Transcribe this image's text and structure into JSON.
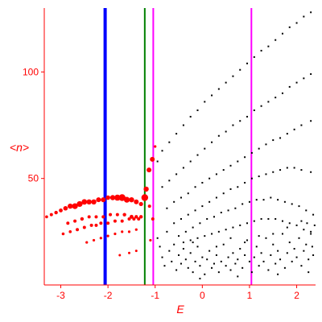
{
  "chart_data": {
    "type": "scatter",
    "title": "",
    "xlabel": "E",
    "ylabel": "<n>",
    "xlim": [
      -3.35,
      2.4
    ],
    "ylim": [
      0,
      130
    ],
    "xticks": [
      {
        "value": -3,
        "label": "-3"
      },
      {
        "value": -2,
        "label": "-2"
      },
      {
        "value": -1,
        "label": "-1"
      },
      {
        "value": 0,
        "label": "0"
      },
      {
        "value": 1,
        "label": "1"
      },
      {
        "value": 2,
        "label": "2"
      }
    ],
    "yticks": [
      {
        "value": 50,
        "label": "50"
      },
      {
        "value": 100,
        "label": "100"
      }
    ],
    "grid": false,
    "legend": "none",
    "vertical_lines": [
      {
        "x": -2.06,
        "color": "#0000ff"
      },
      {
        "x": -1.22,
        "color": "#008000"
      },
      {
        "x": -1.04,
        "color": "#ff00ff"
      },
      {
        "x": 1.04,
        "color": "#ff00ff"
      }
    ],
    "series": [
      {
        "color": "#ff0000",
        "points": [
          [
            -3.3,
            32,
            1.8
          ],
          [
            -3.2,
            33,
            2
          ],
          [
            -3.1,
            34,
            2.2
          ],
          [
            -3.0,
            35,
            2.4
          ],
          [
            -2.9,
            36,
            2.8
          ],
          [
            -2.8,
            37,
            3.2
          ],
          [
            -2.7,
            37,
            3.6
          ],
          [
            -2.6,
            38,
            3.6
          ],
          [
            -2.5,
            39,
            3.4
          ],
          [
            -2.4,
            39,
            3.2
          ],
          [
            -2.3,
            39,
            3.2
          ],
          [
            -2.2,
            40,
            3
          ],
          [
            -2.1,
            40,
            3
          ],
          [
            -2.0,
            41,
            2.8
          ],
          [
            -1.9,
            41,
            3.2
          ],
          [
            -1.8,
            41,
            3.8
          ],
          [
            -1.7,
            41,
            4.2
          ],
          [
            -1.6,
            40,
            3.6
          ],
          [
            -1.5,
            40,
            3.2
          ],
          [
            -1.4,
            39,
            3
          ],
          [
            -1.3,
            38,
            2.6
          ],
          [
            -2.85,
            29,
            2
          ],
          [
            -2.7,
            30,
            2
          ],
          [
            -2.55,
            31,
            2.2
          ],
          [
            -2.4,
            32,
            2
          ],
          [
            -2.25,
            32,
            2
          ],
          [
            -2.1,
            32,
            2
          ],
          [
            -1.95,
            33,
            2
          ],
          [
            -1.8,
            33,
            2
          ],
          [
            -1.65,
            33,
            2.2
          ],
          [
            -1.5,
            32,
            2.4
          ],
          [
            -1.4,
            32,
            2.2
          ],
          [
            -1.3,
            32,
            2.2
          ],
          [
            -2.95,
            24,
            1.8
          ],
          [
            -2.8,
            25,
            1.8
          ],
          [
            -2.65,
            26,
            2
          ],
          [
            -2.5,
            27,
            2
          ],
          [
            -2.35,
            28,
            2
          ],
          [
            -2.25,
            28,
            2
          ],
          [
            -2.15,
            29,
            2
          ],
          [
            -2.0,
            29,
            2
          ],
          [
            -1.85,
            30,
            2
          ],
          [
            -1.7,
            30,
            2
          ],
          [
            -1.55,
            31,
            2
          ],
          [
            -1.45,
            31,
            2
          ],
          [
            -1.35,
            31,
            2
          ],
          [
            -2.45,
            20,
            1.6
          ],
          [
            -2.3,
            21,
            1.6
          ],
          [
            -2.15,
            22,
            1.6
          ],
          [
            -2.0,
            23,
            1.6
          ],
          [
            -1.85,
            24,
            1.6
          ],
          [
            -1.7,
            25,
            1.6
          ],
          [
            -1.55,
            25,
            1.6
          ],
          [
            -1.4,
            26,
            1.6
          ],
          [
            -1.75,
            14,
            1.5
          ],
          [
            -1.55,
            15,
            1.5
          ],
          [
            -1.4,
            16,
            1.5
          ],
          [
            -1.22,
            41,
            4.2
          ],
          [
            -1.19,
            45,
            3.2
          ],
          [
            -1.13,
            54,
            3
          ],
          [
            -1.06,
            59,
            3
          ],
          [
            -1.0,
            65,
            1.6
          ],
          [
            -1.12,
            37,
            2
          ],
          [
            -1.05,
            31,
            2
          ],
          [
            -1.1,
            21,
            1.6
          ]
        ]
      },
      {
        "color": "#000000",
        "points": [
          [
            -0.95,
            58
          ],
          [
            -0.85,
            63
          ],
          [
            -0.7,
            67
          ],
          [
            -0.55,
            71
          ],
          [
            -0.4,
            75
          ],
          [
            -0.25,
            79
          ],
          [
            -0.1,
            82
          ],
          [
            0.05,
            86
          ],
          [
            0.2,
            89
          ],
          [
            0.35,
            92
          ],
          [
            0.5,
            95
          ],
          [
            0.65,
            98
          ],
          [
            0.8,
            101
          ],
          [
            0.95,
            104
          ],
          [
            1.1,
            107
          ],
          [
            1.25,
            110
          ],
          [
            1.4,
            112
          ],
          [
            1.55,
            115
          ],
          [
            1.7,
            118
          ],
          [
            1.85,
            121
          ],
          [
            2.0,
            123
          ],
          [
            2.15,
            126
          ],
          [
            2.3,
            128
          ],
          [
            -0.85,
            46
          ],
          [
            -0.7,
            49
          ],
          [
            -0.55,
            52
          ],
          [
            -0.4,
            55
          ],
          [
            -0.25,
            58
          ],
          [
            -0.1,
            61
          ],
          [
            0.05,
            64
          ],
          [
            0.2,
            67
          ],
          [
            0.35,
            70
          ],
          [
            0.5,
            72
          ],
          [
            0.65,
            75
          ],
          [
            0.8,
            77
          ],
          [
            0.95,
            79
          ],
          [
            1.1,
            82
          ],
          [
            1.25,
            84
          ],
          [
            1.4,
            86
          ],
          [
            1.55,
            88
          ],
          [
            1.7,
            90
          ],
          [
            1.85,
            93
          ],
          [
            2.0,
            95
          ],
          [
            2.15,
            97
          ],
          [
            2.3,
            99
          ],
          [
            -0.75,
            36
          ],
          [
            -0.6,
            39
          ],
          [
            -0.45,
            41
          ],
          [
            -0.3,
            43
          ],
          [
            -0.15,
            46
          ],
          [
            0.0,
            48
          ],
          [
            0.15,
            50
          ],
          [
            0.3,
            52
          ],
          [
            0.45,
            54
          ],
          [
            0.6,
            56
          ],
          [
            0.75,
            58
          ],
          [
            0.9,
            60
          ],
          [
            1.05,
            62
          ],
          [
            1.2,
            64
          ],
          [
            1.35,
            66
          ],
          [
            1.5,
            68
          ],
          [
            1.65,
            69
          ],
          [
            1.8,
            71
          ],
          [
            1.95,
            73
          ],
          [
            2.1,
            75
          ],
          [
            2.3,
            77
          ],
          [
            -0.6,
            29
          ],
          [
            -0.45,
            31
          ],
          [
            -0.3,
            33
          ],
          [
            -0.15,
            35
          ],
          [
            0.0,
            37
          ],
          [
            0.15,
            39
          ],
          [
            0.3,
            41
          ],
          [
            0.45,
            43
          ],
          [
            0.6,
            45
          ],
          [
            0.75,
            46
          ],
          [
            0.9,
            48
          ],
          [
            1.05,
            50
          ],
          [
            1.2,
            51
          ],
          [
            1.35,
            52
          ],
          [
            1.5,
            53
          ],
          [
            1.65,
            54
          ],
          [
            1.8,
            55
          ],
          [
            1.95,
            55
          ],
          [
            2.1,
            54
          ],
          [
            2.3,
            53
          ],
          [
            -0.5,
            23
          ],
          [
            -0.35,
            25
          ],
          [
            -0.2,
            27
          ],
          [
            -0.05,
            29
          ],
          [
            0.1,
            31
          ],
          [
            0.25,
            32
          ],
          [
            0.4,
            34
          ],
          [
            0.55,
            35
          ],
          [
            0.7,
            36
          ],
          [
            0.85,
            38
          ],
          [
            1.0,
            39
          ],
          [
            1.15,
            40
          ],
          [
            1.3,
            40
          ],
          [
            1.45,
            41
          ],
          [
            1.6,
            40
          ],
          [
            1.75,
            39
          ],
          [
            1.9,
            38
          ],
          [
            2.05,
            37
          ],
          [
            2.2,
            35
          ],
          [
            2.35,
            33
          ],
          [
            -0.4,
            20
          ],
          [
            -0.25,
            21
          ],
          [
            -0.1,
            22
          ],
          [
            0.05,
            23
          ],
          [
            0.2,
            24
          ],
          [
            0.35,
            25
          ],
          [
            0.5,
            26
          ],
          [
            0.65,
            27
          ],
          [
            0.8,
            28
          ],
          [
            0.95,
            29
          ],
          [
            1.1,
            30
          ],
          [
            1.25,
            31
          ],
          [
            1.4,
            31
          ],
          [
            1.55,
            31
          ],
          [
            1.7,
            30
          ],
          [
            1.85,
            29
          ],
          [
            2.0,
            28
          ],
          [
            2.15,
            26
          ],
          [
            2.3,
            24
          ],
          [
            -0.95,
            22
          ],
          [
            -0.9,
            18
          ],
          [
            -0.85,
            13
          ],
          [
            -0.8,
            9
          ],
          [
            -0.75,
            25
          ],
          [
            -0.7,
            16
          ],
          [
            -0.65,
            11
          ],
          [
            -0.6,
            19
          ],
          [
            -0.55,
            7
          ],
          [
            -0.5,
            14
          ],
          [
            -0.45,
            10
          ],
          [
            -0.4,
            17
          ],
          [
            -0.35,
            12
          ],
          [
            -0.3,
            8
          ],
          [
            -0.25,
            15
          ],
          [
            -0.2,
            6
          ],
          [
            -0.15,
            11
          ],
          [
            -0.1,
            18
          ],
          [
            -0.05,
            9
          ],
          [
            0.0,
            13
          ],
          [
            0.05,
            5
          ],
          [
            0.1,
            12
          ],
          [
            0.15,
            16
          ],
          [
            0.2,
            8
          ],
          [
            0.25,
            10
          ],
          [
            0.3,
            14
          ],
          [
            0.35,
            6
          ],
          [
            0.4,
            11
          ],
          [
            0.45,
            19
          ],
          [
            0.5,
            9
          ],
          [
            0.55,
            13
          ],
          [
            0.6,
            7
          ],
          [
            0.65,
            15
          ],
          [
            0.7,
            10
          ],
          [
            0.75,
            12
          ],
          [
            0.8,
            17
          ],
          [
            0.85,
            8
          ],
          [
            0.9,
            14
          ],
          [
            0.95,
            21
          ],
          [
            1.0,
            11
          ],
          [
            1.05,
            6
          ],
          [
            1.1,
            13
          ],
          [
            1.15,
            18
          ],
          [
            1.2,
            9
          ],
          [
            1.25,
            15
          ],
          [
            1.3,
            11
          ],
          [
            1.35,
            22
          ],
          [
            1.4,
            7
          ],
          [
            1.45,
            14
          ],
          [
            1.5,
            19
          ],
          [
            1.55,
            10
          ],
          [
            1.6,
            16
          ],
          [
            1.65,
            12
          ],
          [
            1.7,
            24
          ],
          [
            1.75,
            8
          ],
          [
            1.8,
            15
          ],
          [
            1.85,
            20
          ],
          [
            1.9,
            11
          ],
          [
            1.95,
            17
          ],
          [
            2.0,
            13
          ],
          [
            2.05,
            22
          ],
          [
            2.1,
            9
          ],
          [
            2.15,
            16
          ],
          [
            2.2,
            19
          ],
          [
            2.25,
            12
          ],
          [
            2.3,
            25
          ],
          [
            2.35,
            14
          ],
          [
            2.38,
            28
          ],
          [
            2.33,
            18
          ],
          [
            2.22,
            29
          ],
          [
            -0.2,
            20
          ],
          [
            0.3,
            18
          ],
          [
            0.6,
            22
          ],
          [
            0.9,
            20
          ],
          [
            1.2,
            23
          ],
          [
            1.5,
            24
          ],
          [
            1.8,
            27
          ],
          [
            2.1,
            30
          ],
          [
            -0.05,
            3
          ],
          [
            0.75,
            4
          ],
          [
            1.6,
            5
          ],
          [
            2.25,
            6
          ]
        ]
      }
    ]
  }
}
